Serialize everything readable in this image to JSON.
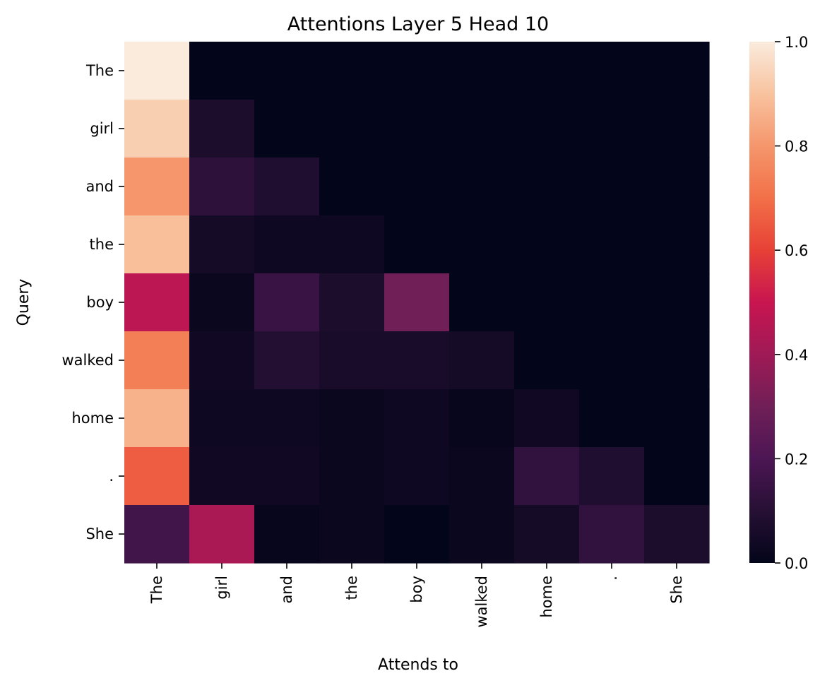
{
  "chart_data": {
    "type": "heatmap",
    "title": "Attentions Layer 5 Head 10",
    "xlabel": "Attends to",
    "ylabel": "Query",
    "x_categories": [
      "The",
      "girl",
      "and",
      "the",
      "boy",
      "walked",
      "home",
      ".",
      "She"
    ],
    "y_categories": [
      "The",
      "girl",
      "and",
      "the",
      "boy",
      "walked",
      "home",
      ".",
      "She"
    ],
    "values": [
      [
        1.0,
        0.0,
        0.0,
        0.0,
        0.0,
        0.0,
        0.0,
        0.0,
        0.0
      ],
      [
        0.93,
        0.07,
        0.0,
        0.0,
        0.0,
        0.0,
        0.0,
        0.0,
        0.0
      ],
      [
        0.8,
        0.12,
        0.08,
        0.0,
        0.0,
        0.0,
        0.0,
        0.0,
        0.0
      ],
      [
        0.89,
        0.05,
        0.03,
        0.03,
        0.0,
        0.0,
        0.0,
        0.0,
        0.0
      ],
      [
        0.47,
        0.02,
        0.15,
        0.07,
        0.3,
        0.0,
        0.0,
        0.0,
        0.0
      ],
      [
        0.74,
        0.04,
        0.09,
        0.06,
        0.06,
        0.05,
        0.0,
        0.0,
        0.0
      ],
      [
        0.86,
        0.03,
        0.03,
        0.02,
        0.03,
        0.01,
        0.04,
        0.0,
        0.0
      ],
      [
        0.66,
        0.04,
        0.04,
        0.02,
        0.03,
        0.02,
        0.13,
        0.08,
        0.0
      ],
      [
        0.17,
        0.43,
        0.01,
        0.02,
        0.0,
        0.02,
        0.05,
        0.13,
        0.07
      ]
    ],
    "colorbar": {
      "range": [
        0.0,
        1.0
      ],
      "ticks": [
        "0.0",
        "0.2",
        "0.4",
        "0.6",
        "0.8",
        "1.0"
      ]
    },
    "colormap": "rocket"
  }
}
